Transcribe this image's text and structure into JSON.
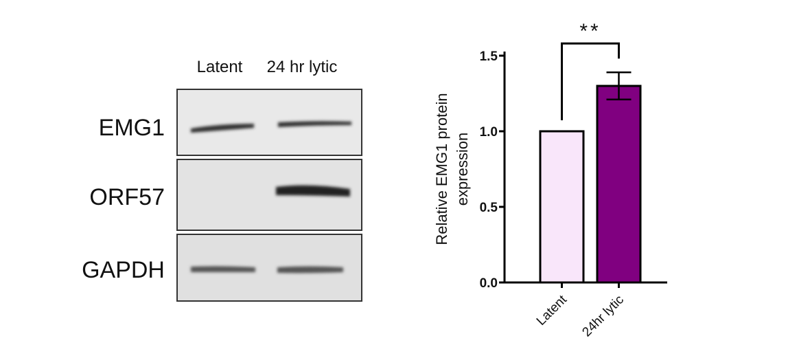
{
  "blot": {
    "lanes": [
      "Latent",
      "24 hr lytic"
    ],
    "rows": [
      "EMG1",
      "ORF57",
      "GAPDH"
    ]
  },
  "chart_data": {
    "type": "bar",
    "ylabel": [
      "Relative EMG1 protein",
      "expression"
    ],
    "categories": [
      "Latent",
      "24hr lytic"
    ],
    "values": [
      1.0,
      1.3
    ],
    "errors": [
      null,
      0.09
    ],
    "colors": [
      "#f9e6fa",
      "#800080"
    ],
    "ylim": [
      0,
      1.5
    ],
    "yticks": [
      {
        "value": 0,
        "label": "0.0"
      },
      0.5,
      {
        "value": 1,
        "label": "1.0"
      },
      1.5
    ],
    "annotation": "**"
  }
}
